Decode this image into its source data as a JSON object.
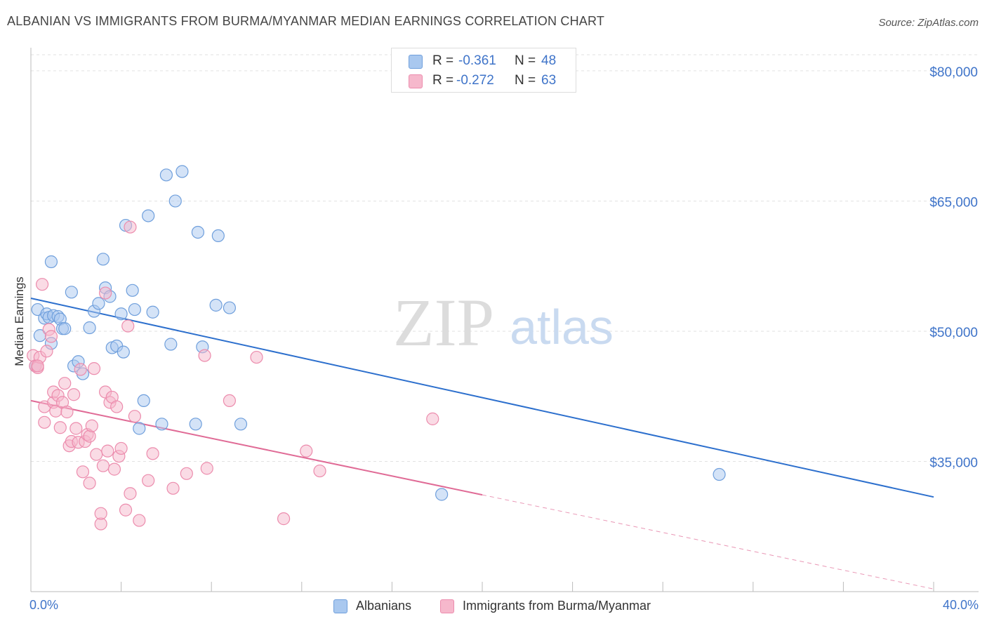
{
  "title": "ALBANIAN VS IMMIGRANTS FROM BURMA/MYANMAR MEDIAN EARNINGS CORRELATION CHART",
  "source": "Source: ZipAtlas.com",
  "watermark": {
    "zip": "ZIP",
    "atlas": "atlas"
  },
  "stats": [
    {
      "r_label": "R =",
      "r_value": "-0.361",
      "n_label": "N =",
      "n_value": "48",
      "color": "#a9c8ef"
    },
    {
      "r_label": "R =",
      "r_value": "-0.272",
      "n_label": "N =",
      "n_value": "63",
      "color": "#f6b8cc"
    }
  ],
  "legend": [
    {
      "label": "Albanians",
      "color": "#a9c8ef"
    },
    {
      "label": "Immigrants from Burma/Myanmar",
      "color": "#f6b8cc"
    }
  ],
  "chart_data": {
    "type": "scatter",
    "xlabel": "",
    "ylabel": "Median Earnings",
    "x_ticks": [
      "0.0%",
      "40.0%"
    ],
    "y_ticks": [
      {
        "value": 80000,
        "label": "$80,000"
      },
      {
        "value": 65000,
        "label": "$65,000"
      },
      {
        "value": 50000,
        "label": "$50,000"
      },
      {
        "value": 35000,
        "label": "$35,000"
      }
    ],
    "xlim": [
      0,
      40
    ],
    "ylim": [
      20000,
      82500
    ],
    "grid": true,
    "series": [
      {
        "name": "Albanians",
        "color": "#a9c8ef",
        "stroke": "#6f9fdc",
        "trend_color": "#2c6fcd",
        "trend": {
          "x0": 0,
          "y0": 53800,
          "x1": 40,
          "y1": 30900,
          "solid_to": 40
        },
        "points": [
          [
            0.2,
            46000
          ],
          [
            0.3,
            52500
          ],
          [
            0.4,
            49500
          ],
          [
            0.6,
            51500
          ],
          [
            0.7,
            52000
          ],
          [
            0.8,
            51600
          ],
          [
            0.9,
            58000
          ],
          [
            0.9,
            48600
          ],
          [
            1.0,
            51800
          ],
          [
            1.2,
            51700
          ],
          [
            1.3,
            51400
          ],
          [
            1.4,
            50300
          ],
          [
            1.5,
            50300
          ],
          [
            1.8,
            54500
          ],
          [
            1.9,
            46000
          ],
          [
            2.1,
            46500
          ],
          [
            2.3,
            45100
          ],
          [
            2.6,
            50400
          ],
          [
            2.8,
            52300
          ],
          [
            3.0,
            53200
          ],
          [
            3.2,
            58300
          ],
          [
            3.3,
            55000
          ],
          [
            3.5,
            54000
          ],
          [
            3.6,
            48100
          ],
          [
            3.8,
            48300
          ],
          [
            4.0,
            52000
          ],
          [
            4.1,
            47600
          ],
          [
            4.2,
            62200
          ],
          [
            4.5,
            54700
          ],
          [
            4.6,
            52500
          ],
          [
            4.8,
            38800
          ],
          [
            5.0,
            42000
          ],
          [
            5.2,
            63300
          ],
          [
            5.4,
            52200
          ],
          [
            5.8,
            39300
          ],
          [
            6.0,
            68000
          ],
          [
            6.2,
            48500
          ],
          [
            6.4,
            65000
          ],
          [
            6.7,
            68400
          ],
          [
            7.3,
            39300
          ],
          [
            7.4,
            61400
          ],
          [
            7.6,
            48200
          ],
          [
            8.2,
            53000
          ],
          [
            8.3,
            61000
          ],
          [
            8.8,
            52700
          ],
          [
            9.3,
            39300
          ],
          [
            18.2,
            31200
          ],
          [
            30.5,
            33500
          ]
        ]
      },
      {
        "name": "Immigrants from Burma/Myanmar",
        "color": "#f6b8cc",
        "stroke": "#ec8cad",
        "trend_color": "#e06b96",
        "trend": {
          "x0": 0,
          "y0": 42000,
          "x1": 40,
          "y1": 20300,
          "solid_to": 20
        },
        "points": [
          [
            0.1,
            47200
          ],
          [
            0.2,
            46000
          ],
          [
            0.3,
            45800
          ],
          [
            0.4,
            47000
          ],
          [
            0.5,
            55400
          ],
          [
            0.6,
            41300
          ],
          [
            0.6,
            39500
          ],
          [
            0.7,
            47700
          ],
          [
            0.8,
            50200
          ],
          [
            0.9,
            49400
          ],
          [
            1.0,
            41800
          ],
          [
            1.0,
            43000
          ],
          [
            1.1,
            40800
          ],
          [
            1.2,
            42600
          ],
          [
            1.3,
            38900
          ],
          [
            1.4,
            41800
          ],
          [
            1.5,
            44000
          ],
          [
            1.6,
            40700
          ],
          [
            1.7,
            36800
          ],
          [
            1.8,
            37300
          ],
          [
            1.9,
            42700
          ],
          [
            2.0,
            38800
          ],
          [
            2.1,
            37200
          ],
          [
            2.2,
            45600
          ],
          [
            2.3,
            33800
          ],
          [
            2.4,
            37300
          ],
          [
            2.5,
            38100
          ],
          [
            2.6,
            37900
          ],
          [
            2.6,
            32500
          ],
          [
            2.7,
            39100
          ],
          [
            2.8,
            45700
          ],
          [
            2.9,
            35800
          ],
          [
            3.1,
            27800
          ],
          [
            3.1,
            29000
          ],
          [
            3.2,
            34500
          ],
          [
            3.3,
            54400
          ],
          [
            3.3,
            43000
          ],
          [
            3.4,
            36200
          ],
          [
            3.5,
            41800
          ],
          [
            3.6,
            42400
          ],
          [
            3.7,
            34100
          ],
          [
            3.8,
            41300
          ],
          [
            3.9,
            35600
          ],
          [
            4.0,
            36500
          ],
          [
            4.2,
            29400
          ],
          [
            4.3,
            50600
          ],
          [
            4.4,
            31300
          ],
          [
            4.4,
            62000
          ],
          [
            4.6,
            40200
          ],
          [
            4.8,
            28200
          ],
          [
            5.2,
            32800
          ],
          [
            5.4,
            35900
          ],
          [
            6.3,
            31900
          ],
          [
            6.9,
            33600
          ],
          [
            7.7,
            47200
          ],
          [
            7.8,
            34200
          ],
          [
            8.8,
            42000
          ],
          [
            10.0,
            47000
          ],
          [
            11.2,
            28400
          ],
          [
            12.2,
            36200
          ],
          [
            12.8,
            33900
          ],
          [
            17.8,
            39900
          ],
          [
            0.3,
            46000
          ]
        ]
      }
    ]
  }
}
